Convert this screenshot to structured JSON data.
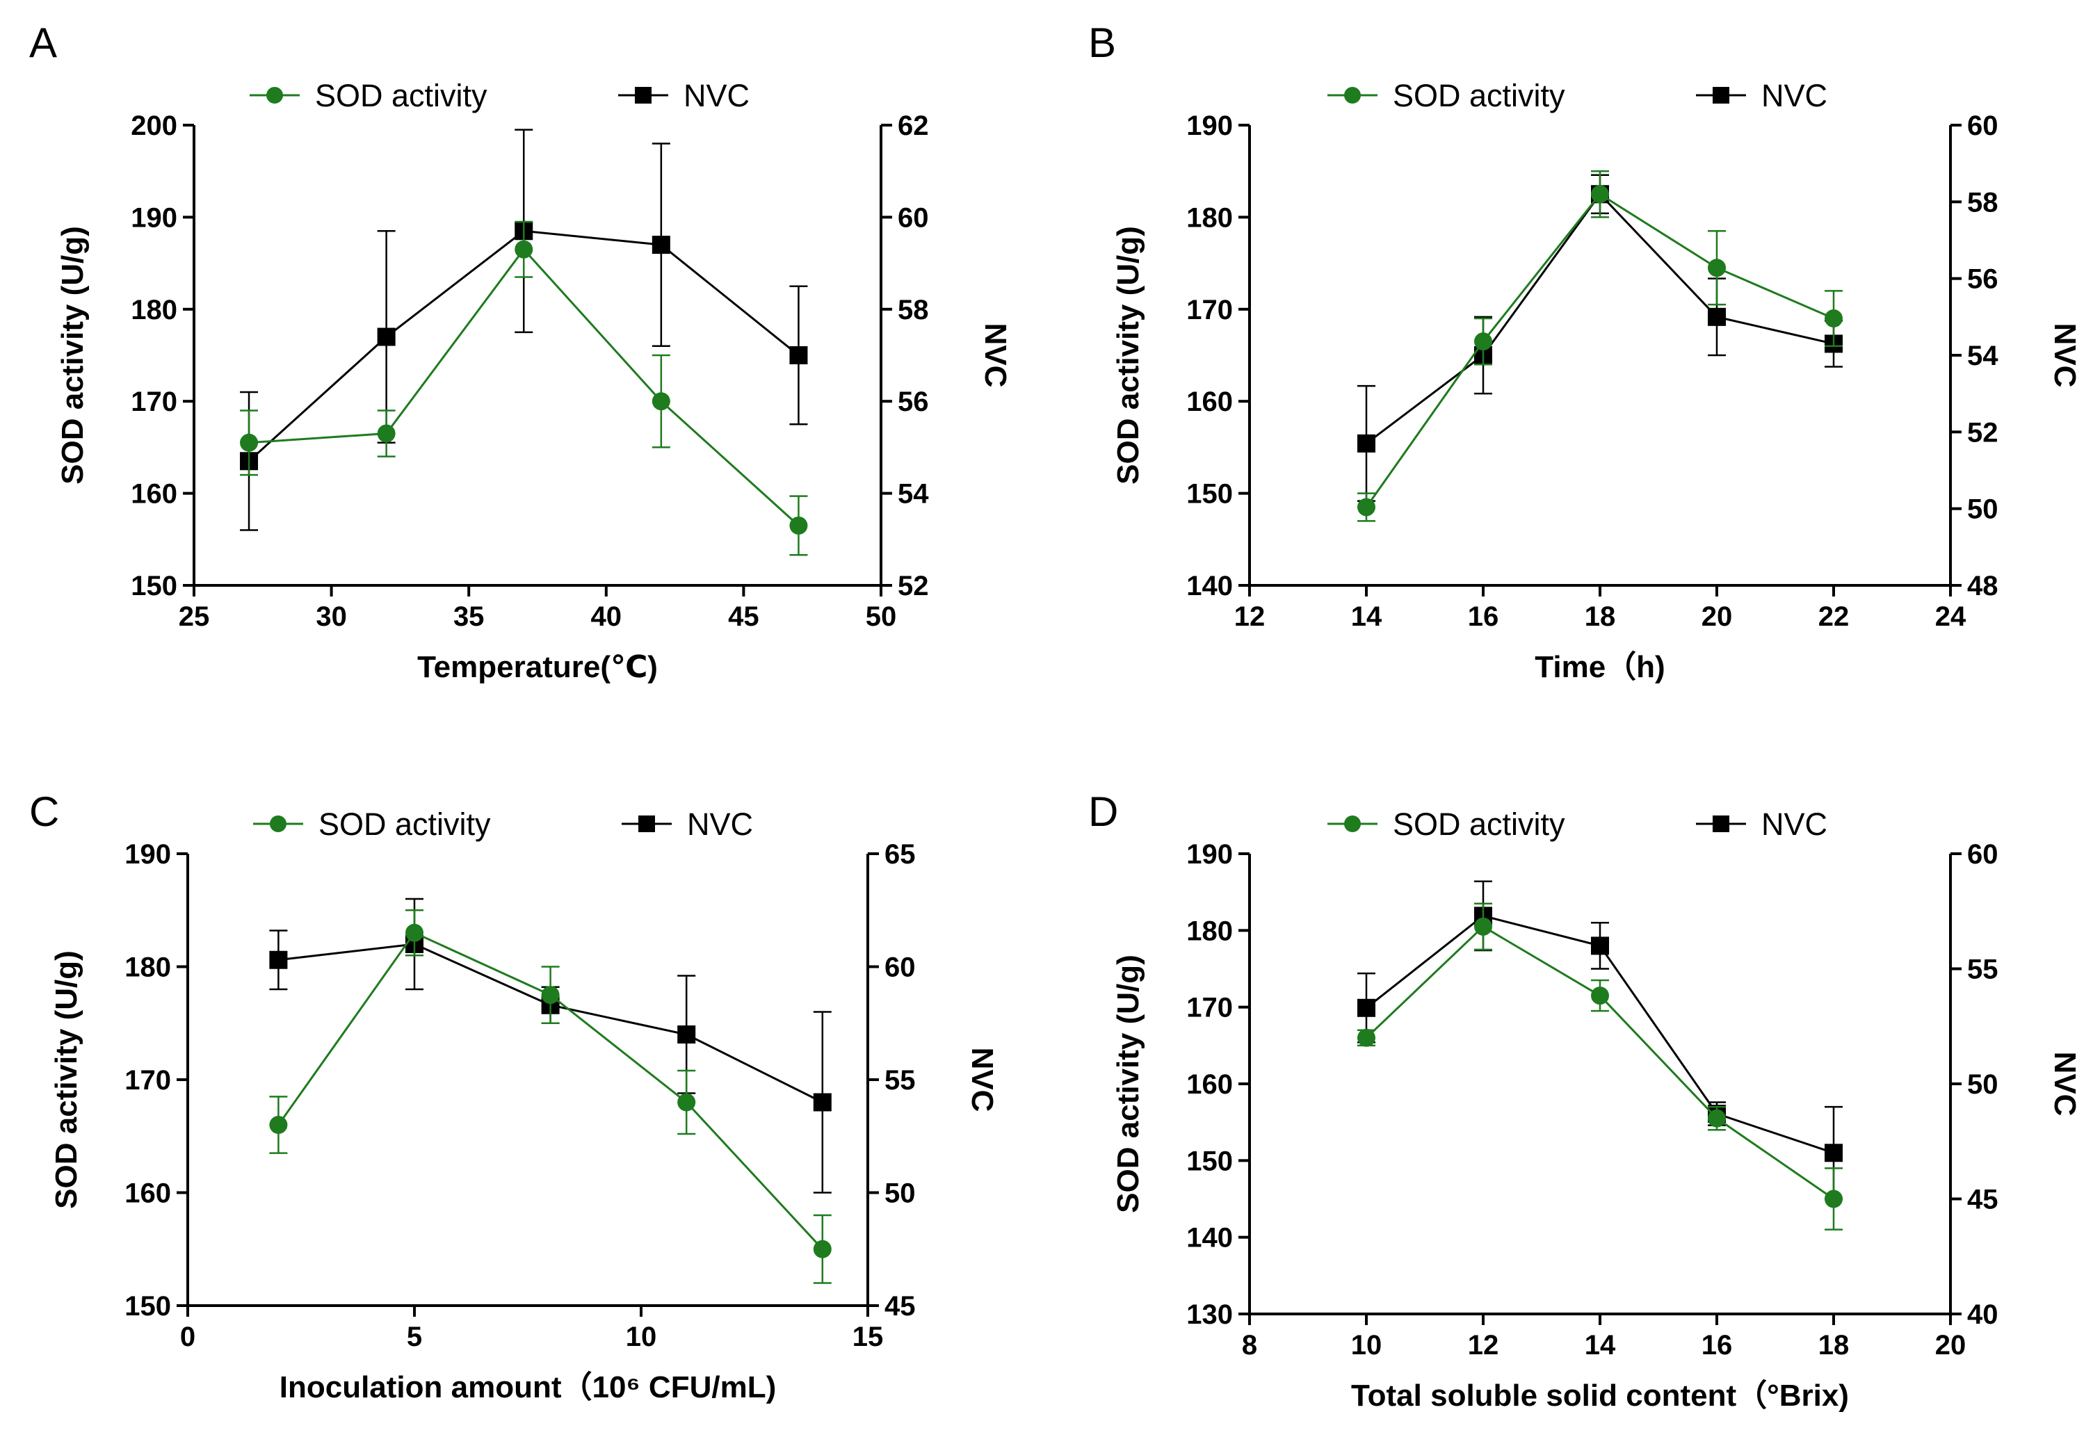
{
  "chart_data": [
    {
      "type": "line",
      "panel_label": "A",
      "xlabel": "Temperature(℃)",
      "ylabel": "SOD activity (U/g)",
      "y2label": "NVC",
      "xlim": [
        25,
        50
      ],
      "xticks": [
        25,
        30,
        35,
        40,
        45,
        50
      ],
      "ylim": [
        150,
        200
      ],
      "yticks": [
        150,
        160,
        170,
        180,
        190,
        200
      ],
      "y2lim": [
        52,
        62
      ],
      "y2ticks": [
        52,
        54,
        56,
        58,
        60,
        62
      ],
      "legend": [
        "SOD activity",
        "NVC"
      ],
      "series": [
        {
          "name": "SOD activity",
          "axis": "left",
          "color": "#1e7b1e",
          "marker": "circle",
          "x": [
            27,
            32,
            37,
            42,
            47
          ],
          "y": [
            165.5,
            166.5,
            186.5,
            170,
            156.5
          ],
          "err": [
            3.5,
            2.5,
            3.0,
            5.0,
            3.2
          ]
        },
        {
          "name": "NVC",
          "axis": "right",
          "color": "#000000",
          "marker": "square",
          "x": [
            27,
            32,
            37,
            42,
            47
          ],
          "y": [
            54.7,
            57.4,
            59.7,
            59.4,
            57.0
          ],
          "err": [
            1.5,
            2.3,
            2.2,
            2.2,
            1.5
          ]
        }
      ]
    },
    {
      "type": "line",
      "panel_label": "B",
      "xlabel": "Time（h)",
      "ylabel": "SOD activity (U/g)",
      "y2label": "NVC",
      "xlim": [
        12,
        24
      ],
      "xticks": [
        12,
        14,
        16,
        18,
        20,
        22,
        24
      ],
      "ylim": [
        140,
        190
      ],
      "yticks": [
        140,
        150,
        160,
        170,
        180,
        190
      ],
      "y2lim": [
        48,
        60
      ],
      "y2ticks": [
        48,
        50,
        52,
        54,
        56,
        58,
        60
      ],
      "legend": [
        "SOD activity",
        "NVC"
      ],
      "series": [
        {
          "name": "SOD activity",
          "axis": "left",
          "color": "#1e7b1e",
          "marker": "circle",
          "x": [
            14,
            16,
            18,
            20,
            22
          ],
          "y": [
            148.5,
            166.5,
            182.5,
            174.5,
            169
          ],
          "err": [
            1.5,
            2.5,
            2.5,
            4.0,
            3.0
          ]
        },
        {
          "name": "NVC",
          "axis": "right",
          "color": "#000000",
          "marker": "square",
          "x": [
            14,
            16,
            18,
            20,
            22
          ],
          "y": [
            51.7,
            54.0,
            58.2,
            55.0,
            54.3
          ],
          "err": [
            1.5,
            1.0,
            0.5,
            1.0,
            0.6
          ]
        }
      ]
    },
    {
      "type": "line",
      "panel_label": "C",
      "xlabel": "Inoculation amount（10⁶ CFU/mL)",
      "ylabel": "SOD activity (U/g)",
      "y2label": "NVC",
      "xlim": [
        0,
        15
      ],
      "xticks": [
        0,
        5,
        10,
        15
      ],
      "ylim": [
        150,
        190
      ],
      "yticks": [
        150,
        160,
        170,
        180,
        190
      ],
      "y2lim": [
        45,
        65
      ],
      "y2ticks": [
        45,
        50,
        55,
        60,
        65
      ],
      "legend": [
        "SOD activity",
        "NVC"
      ],
      "series": [
        {
          "name": "SOD activity",
          "axis": "left",
          "color": "#1e7b1e",
          "marker": "circle",
          "x": [
            2,
            5,
            8,
            11,
            14
          ],
          "y": [
            166,
            183,
            177.5,
            168,
            155
          ],
          "err": [
            2.5,
            2.0,
            2.5,
            2.8,
            3.0
          ]
        },
        {
          "name": "NVC",
          "axis": "right",
          "color": "#000000",
          "marker": "square",
          "x": [
            2,
            5,
            8,
            11,
            14
          ],
          "y": [
            60.3,
            61.0,
            58.3,
            57.0,
            54.0
          ],
          "err": [
            1.3,
            2.0,
            0.8,
            2.6,
            4.0
          ]
        }
      ]
    },
    {
      "type": "line",
      "panel_label": "D",
      "xlabel": "Total soluble solid content（°Brix)",
      "ylabel": "SOD activity (U/g)",
      "y2label": "NVC",
      "xlim": [
        8,
        20
      ],
      "xticks": [
        8,
        10,
        12,
        14,
        16,
        18,
        20
      ],
      "ylim": [
        130,
        190
      ],
      "yticks": [
        130,
        140,
        150,
        160,
        170,
        180,
        190
      ],
      "y2lim": [
        40,
        60
      ],
      "y2ticks": [
        40,
        45,
        50,
        55,
        60
      ],
      "legend": [
        "SOD activity",
        "NVC"
      ],
      "series": [
        {
          "name": "SOD activity",
          "axis": "left",
          "color": "#1e7b1e",
          "marker": "circle",
          "x": [
            10,
            12,
            14,
            16,
            18
          ],
          "y": [
            166,
            180.5,
            171.5,
            155.5,
            145
          ],
          "err": [
            1.0,
            3.0,
            2.0,
            1.5,
            4.0
          ]
        },
        {
          "name": "NVC",
          "axis": "right",
          "color": "#000000",
          "marker": "square",
          "x": [
            10,
            12,
            14,
            16,
            18
          ],
          "y": [
            53.3,
            57.3,
            56.0,
            48.7,
            47.0
          ],
          "err": [
            1.5,
            1.5,
            1.0,
            0.5,
            2.0
          ]
        }
      ]
    }
  ]
}
